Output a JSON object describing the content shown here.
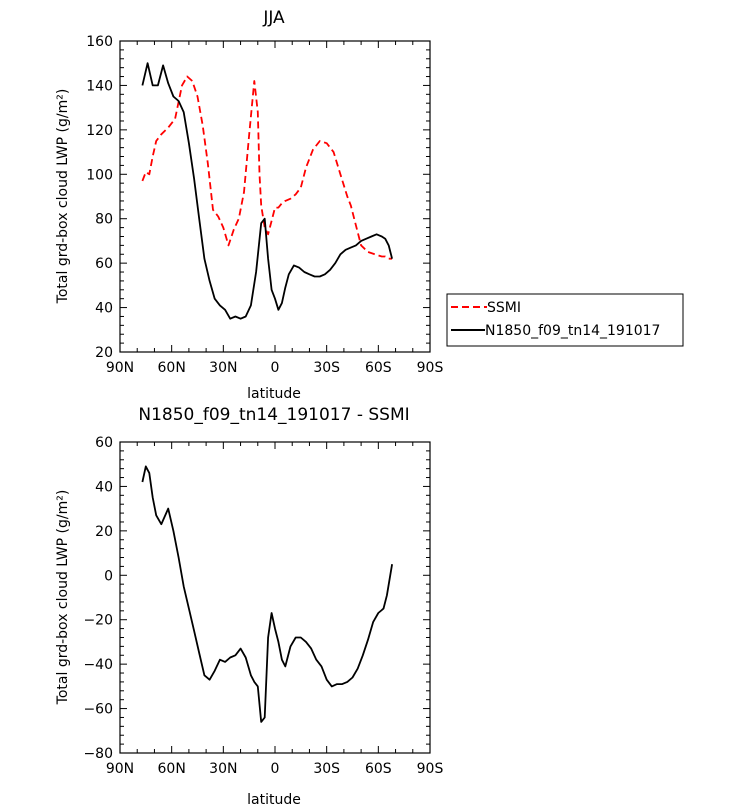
{
  "chart_data": [
    {
      "type": "line",
      "title": "JJA",
      "xlabel": "latitude",
      "ylabel": "Total grd-box cloud LWP (g/m²)",
      "xlim": [
        90,
        -90
      ],
      "ylim": [
        20,
        160
      ],
      "xticks": [
        90,
        60,
        30,
        0,
        -30,
        -60,
        -90
      ],
      "xtick_labels": [
        "90N",
        "60N",
        "30N",
        "0",
        "30S",
        "60S",
        "90S"
      ],
      "yticks": [
        20,
        40,
        60,
        80,
        100,
        120,
        140,
        160
      ],
      "ytick_labels": [
        "20",
        "40",
        "60",
        "80",
        "100",
        "120",
        "140",
        "160"
      ],
      "legend": {
        "placement": "right",
        "entries": [
          "SSMI",
          "N1850_f09_tn14_191017"
        ]
      },
      "series": [
        {
          "name": "SSMI",
          "color": "#ff0000",
          "dash": "dashed",
          "x": [
            77,
            75,
            73,
            71,
            69,
            66,
            62,
            58,
            54,
            51,
            48,
            45,
            42,
            39,
            36,
            33,
            30,
            27,
            24,
            21,
            18,
            15,
            12,
            10,
            9,
            8,
            6,
            4,
            2,
            0,
            -2,
            -4,
            -6,
            -9,
            -12,
            -15,
            -18,
            -22,
            -26,
            -30,
            -34,
            -38,
            -42,
            -44,
            -46,
            -50,
            -54,
            -58,
            -62,
            -64,
            -66,
            -68
          ],
          "y": [
            97,
            101,
            100,
            108,
            115,
            118,
            121,
            125,
            140,
            144,
            142,
            135,
            122,
            105,
            84,
            81,
            76,
            68,
            75,
            80,
            92,
            118,
            142,
            128,
            100,
            86,
            76,
            73,
            79,
            85,
            85,
            87,
            88,
            89,
            91,
            94,
            103,
            111,
            115,
            114,
            110,
            100,
            90,
            86,
            80,
            68,
            65,
            64,
            63,
            63,
            62,
            62
          ]
        },
        {
          "name": "N1850_f09_tn14_191017",
          "color": "#000000",
          "dash": "solid",
          "x": [
            77,
            74,
            71,
            68,
            65,
            62,
            59,
            56,
            53,
            50,
            47,
            44,
            41,
            38,
            35,
            32,
            29,
            26,
            23,
            20,
            17,
            14,
            11,
            8,
            6,
            4,
            2,
            0,
            -2,
            -4,
            -6,
            -8,
            -11,
            -14,
            -17,
            -20,
            -23,
            -26,
            -29,
            -32,
            -35,
            -38,
            -41,
            -44,
            -47,
            -50,
            -53,
            -56,
            -59,
            -62,
            -64,
            -66,
            -68
          ],
          "y": [
            140,
            150,
            140,
            140,
            149,
            141,
            135,
            133,
            128,
            114,
            98,
            80,
            62,
            52,
            44,
            41,
            39,
            35,
            36,
            35,
            36,
            41,
            56,
            78,
            80,
            62,
            48,
            44,
            39,
            42,
            49,
            55,
            59,
            58,
            56,
            55,
            54,
            54,
            55,
            57,
            60,
            64,
            66,
            67,
            68,
            70,
            71,
            72,
            73,
            72,
            71,
            68,
            62
          ]
        }
      ]
    },
    {
      "type": "line",
      "title": "N1850_f09_tn14_191017 - SSMI",
      "xlabel": "latitude",
      "ylabel": "Total grd-box cloud LWP (g/m²)",
      "xlim": [
        90,
        -90
      ],
      "ylim": [
        -80,
        60
      ],
      "xticks": [
        90,
        60,
        30,
        0,
        -30,
        -60,
        -90
      ],
      "xtick_labels": [
        "90N",
        "60N",
        "30N",
        "0",
        "30S",
        "60S",
        "90S"
      ],
      "yticks": [
        -80,
        -60,
        -40,
        -20,
        0,
        20,
        40,
        60
      ],
      "ytick_labels": [
        "−80",
        "−60",
        "−40",
        "−20",
        "0",
        "20",
        "40",
        "60"
      ],
      "series": [
        {
          "color": "#000000",
          "dash": "solid",
          "x": [
            77,
            75,
            73,
            71,
            69,
            66,
            62,
            59,
            56,
            53,
            50,
            47,
            44,
            41,
            38,
            35,
            32,
            29,
            26,
            23,
            20,
            17,
            14,
            12,
            10,
            8,
            6,
            4,
            2,
            0,
            -2,
            -4,
            -6,
            -9,
            -12,
            -15,
            -18,
            -21,
            -24,
            -27,
            -30,
            -33,
            -36,
            -39,
            -42,
            -45,
            -48,
            -51,
            -54,
            -57,
            -60,
            -63,
            -65,
            -68
          ],
          "y": [
            42,
            49,
            46,
            35,
            27,
            23,
            30,
            20,
            8,
            -5,
            -15,
            -25,
            -35,
            -45,
            -47,
            -43,
            -38,
            -39,
            -37,
            -36,
            -33,
            -37,
            -45,
            -48,
            -50,
            -66,
            -64,
            -28,
            -17,
            -24,
            -30,
            -38,
            -41,
            -32,
            -28,
            -28,
            -30,
            -33,
            -38,
            -41,
            -47,
            -50,
            -49,
            -49,
            -48,
            -46,
            -42,
            -36,
            -29,
            -21,
            -17,
            -15,
            -9,
            5
          ]
        }
      ]
    }
  ]
}
